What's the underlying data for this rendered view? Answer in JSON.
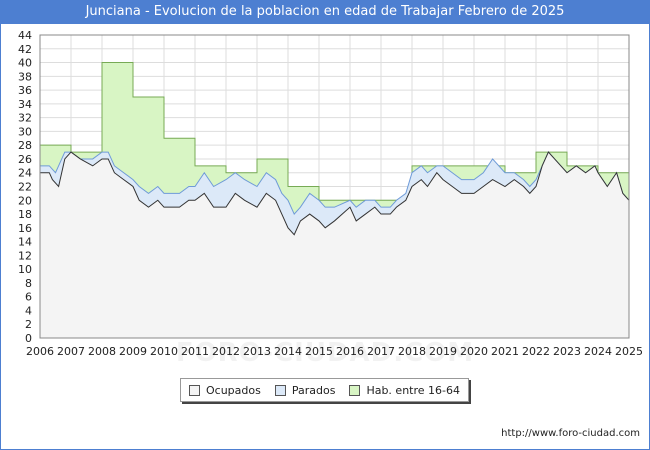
{
  "chart_data": {
    "type": "area",
    "title": "Junciana - Evolucion de la poblacion en edad de Trabajar Febrero de 2025",
    "xlabel": "",
    "ylabel": "",
    "xlim": [
      2006,
      2025
    ],
    "ylim": [
      0,
      44
    ],
    "grid": true,
    "x_ticks": [
      "2006",
      "2007",
      "2008",
      "2009",
      "2010",
      "2011",
      "2012",
      "2013",
      "2014",
      "2015",
      "2016",
      "2017",
      "2018",
      "2019",
      "2020",
      "2021",
      "2022",
      "2023",
      "2024",
      "2025"
    ],
    "y_ticks": [
      0,
      2,
      4,
      6,
      8,
      10,
      12,
      14,
      16,
      18,
      20,
      22,
      24,
      26,
      28,
      30,
      32,
      34,
      36,
      38,
      40,
      42,
      44
    ],
    "legend_position": "bottom",
    "series": [
      {
        "name": "Ocupados",
        "color": "#f4f4f4",
        "line": "#333333",
        "points": [
          [
            2006,
            24
          ],
          [
            2006.3,
            24
          ],
          [
            2006.4,
            23
          ],
          [
            2006.6,
            22
          ],
          [
            2006.8,
            26
          ],
          [
            2007,
            27
          ],
          [
            2007.3,
            26
          ],
          [
            2007.7,
            25
          ],
          [
            2008,
            26
          ],
          [
            2008.2,
            26
          ],
          [
            2008.4,
            24
          ],
          [
            2008.7,
            23
          ],
          [
            2009,
            22
          ],
          [
            2009.2,
            20
          ],
          [
            2009.5,
            19
          ],
          [
            2009.8,
            20
          ],
          [
            2010,
            19
          ],
          [
            2010.5,
            19
          ],
          [
            2010.8,
            20
          ],
          [
            2011,
            20
          ],
          [
            2011.3,
            21
          ],
          [
            2011.6,
            19
          ],
          [
            2012,
            19
          ],
          [
            2012.3,
            21
          ],
          [
            2012.6,
            20
          ],
          [
            2013,
            19
          ],
          [
            2013.3,
            21
          ],
          [
            2013.6,
            20
          ],
          [
            2013.8,
            18
          ],
          [
            2014,
            16
          ],
          [
            2014.2,
            15
          ],
          [
            2014.4,
            17
          ],
          [
            2014.7,
            18
          ],
          [
            2015,
            17
          ],
          [
            2015.2,
            16
          ],
          [
            2015.5,
            17
          ],
          [
            2016,
            19
          ],
          [
            2016.2,
            17
          ],
          [
            2016.5,
            18
          ],
          [
            2016.8,
            19
          ],
          [
            2017,
            18
          ],
          [
            2017.3,
            18
          ],
          [
            2017.5,
            19
          ],
          [
            2017.8,
            20
          ],
          [
            2018,
            22
          ],
          [
            2018.3,
            23
          ],
          [
            2018.5,
            22
          ],
          [
            2018.8,
            24
          ],
          [
            2019,
            23
          ],
          [
            2019.3,
            22
          ],
          [
            2019.6,
            21
          ],
          [
            2020,
            21
          ],
          [
            2020.3,
            22
          ],
          [
            2020.6,
            23
          ],
          [
            2021,
            22
          ],
          [
            2021.3,
            23
          ],
          [
            2021.6,
            22
          ],
          [
            2021.8,
            21
          ],
          [
            2022,
            22
          ],
          [
            2022.2,
            25
          ],
          [
            2022.4,
            27
          ],
          [
            2022.6,
            26
          ],
          [
            2022.8,
            25
          ],
          [
            2023,
            24
          ],
          [
            2023.3,
            25
          ],
          [
            2023.6,
            24
          ],
          [
            2023.9,
            25
          ],
          [
            2024,
            24
          ],
          [
            2024.3,
            22
          ],
          [
            2024.6,
            24
          ],
          [
            2024.8,
            21
          ],
          [
            2025,
            20
          ]
        ]
      },
      {
        "name": "Parados",
        "color": "#dce9f8",
        "line": "#6f9bd8",
        "points": [
          [
            2006,
            25
          ],
          [
            2006.3,
            25
          ],
          [
            2006.5,
            24
          ],
          [
            2006.8,
            27
          ],
          [
            2007,
            27
          ],
          [
            2007.3,
            26
          ],
          [
            2007.7,
            26
          ],
          [
            2008,
            27
          ],
          [
            2008.2,
            27
          ],
          [
            2008.4,
            25
          ],
          [
            2008.7,
            24
          ],
          [
            2009,
            23
          ],
          [
            2009.2,
            22
          ],
          [
            2009.5,
            21
          ],
          [
            2009.8,
            22
          ],
          [
            2010,
            21
          ],
          [
            2010.5,
            21
          ],
          [
            2010.8,
            22
          ],
          [
            2011,
            22
          ],
          [
            2011.3,
            24
          ],
          [
            2011.6,
            22
          ],
          [
            2012,
            23
          ],
          [
            2012.3,
            24
          ],
          [
            2012.6,
            23
          ],
          [
            2013,
            22
          ],
          [
            2013.3,
            24
          ],
          [
            2013.6,
            23
          ],
          [
            2013.8,
            21
          ],
          [
            2014,
            20
          ],
          [
            2014.2,
            18
          ],
          [
            2014.4,
            19
          ],
          [
            2014.7,
            21
          ],
          [
            2015,
            20
          ],
          [
            2015.2,
            19
          ],
          [
            2015.5,
            19
          ],
          [
            2016,
            20
          ],
          [
            2016.2,
            19
          ],
          [
            2016.5,
            20
          ],
          [
            2016.8,
            20
          ],
          [
            2017,
            19
          ],
          [
            2017.3,
            19
          ],
          [
            2017.5,
            20
          ],
          [
            2017.8,
            21
          ],
          [
            2018,
            24
          ],
          [
            2018.3,
            25
          ],
          [
            2018.5,
            24
          ],
          [
            2018.8,
            25
          ],
          [
            2019,
            25
          ],
          [
            2019.3,
            24
          ],
          [
            2019.6,
            23
          ],
          [
            2020,
            23
          ],
          [
            2020.3,
            24
          ],
          [
            2020.6,
            26
          ],
          [
            2021,
            24
          ],
          [
            2021.3,
            24
          ],
          [
            2021.6,
            23
          ],
          [
            2021.8,
            22
          ],
          [
            2022,
            23
          ],
          [
            2022.2,
            25
          ],
          [
            2022.4,
            27
          ],
          [
            2022.6,
            26
          ],
          [
            2022.8,
            25
          ],
          [
            2023,
            24
          ],
          [
            2023.3,
            25
          ],
          [
            2023.6,
            24
          ],
          [
            2023.9,
            25
          ],
          [
            2024,
            24
          ],
          [
            2024.3,
            22
          ],
          [
            2024.6,
            24
          ],
          [
            2024.8,
            21
          ],
          [
            2025,
            20
          ]
        ]
      },
      {
        "name": "Hab. entre 16-64",
        "color": "#d8f5c4",
        "line": "#444444",
        "steps": [
          [
            2006,
            2007,
            28
          ],
          [
            2007,
            2008,
            27
          ],
          [
            2008,
            2009,
            40
          ],
          [
            2009,
            2010,
            35
          ],
          [
            2010,
            2011,
            29
          ],
          [
            2011,
            2012,
            25
          ],
          [
            2012,
            2013,
            24
          ],
          [
            2013,
            2014,
            26
          ],
          [
            2014,
            2015,
            22
          ],
          [
            2015,
            2016,
            20
          ],
          [
            2016,
            2017,
            20
          ],
          [
            2017,
            2018,
            20
          ],
          [
            2018,
            2019,
            25
          ],
          [
            2019,
            2020,
            25
          ],
          [
            2020,
            2021,
            25
          ],
          [
            2021,
            2022,
            24
          ],
          [
            2022,
            2023,
            27
          ],
          [
            2023,
            2024,
            25
          ],
          [
            2024,
            2025,
            24
          ]
        ]
      }
    ]
  },
  "footer": {
    "url": "http://www.foro-ciudad.com",
    "watermark": "FORO-CIUDAD.COM"
  }
}
